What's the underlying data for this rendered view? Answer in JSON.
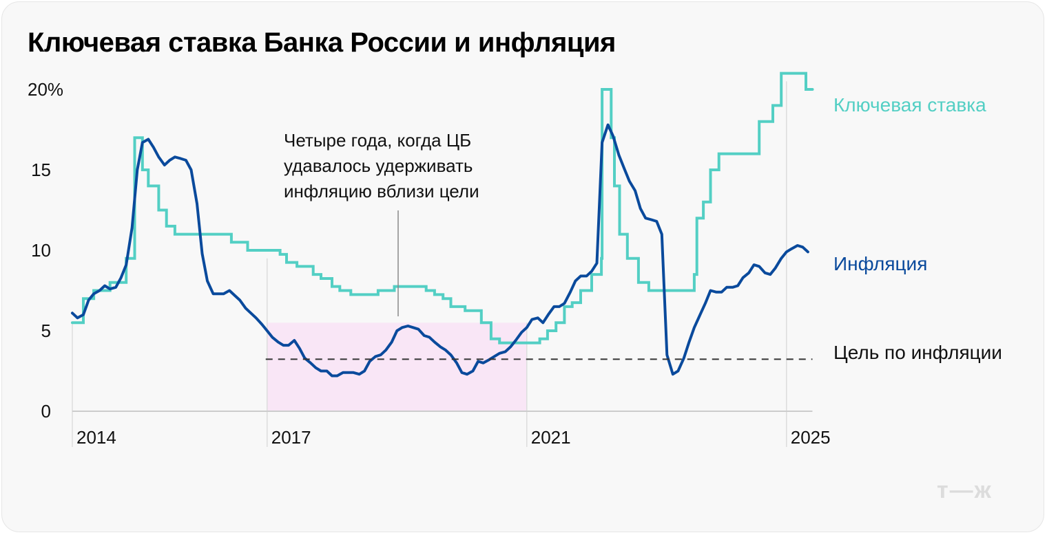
{
  "header": {
    "title": "Ключевая ставка Банка России и инфляция"
  },
  "logo": {
    "text": "т—ж"
  },
  "colors": {
    "background": "#f8f8f8",
    "key_rate": "#53cfc4",
    "inflation": "#0a4a9c",
    "target_line": "#333333",
    "highlight_band": "#f9e6f6",
    "grid": "#dddddd",
    "axis": "#cccccc"
  },
  "chart_data": {
    "type": "line",
    "title": "Ключевая ставка Банка России и инфляция",
    "xlabel": "",
    "ylabel": "",
    "ylim": [
      0,
      20
    ],
    "xlim": [
      2014.0,
      2025.4
    ],
    "y_ticks": [
      {
        "value": 0,
        "label": "0"
      },
      {
        "value": 5,
        "label": "5"
      },
      {
        "value": 10,
        "label": "10"
      },
      {
        "value": 15,
        "label": "15"
      },
      {
        "value": 20,
        "label": "20%"
      }
    ],
    "x_ticks": [
      {
        "value": 2014,
        "label": "2014"
      },
      {
        "value": 2017,
        "label": "2017"
      },
      {
        "value": 2021,
        "label": "2021"
      },
      {
        "value": 2025,
        "label": "2025"
      }
    ],
    "grid": "vertical lines at labeled years",
    "legend_position": "inline right",
    "series": [
      {
        "name": "Ключевая ставка",
        "style": "step",
        "points": [
          [
            2014.0,
            5.5
          ],
          [
            2014.17,
            7.0
          ],
          [
            2014.33,
            7.5
          ],
          [
            2014.58,
            8.0
          ],
          [
            2014.83,
            9.5
          ],
          [
            2014.96,
            17.0
          ],
          [
            2015.08,
            15.0
          ],
          [
            2015.17,
            14.0
          ],
          [
            2015.33,
            12.5
          ],
          [
            2015.45,
            11.5
          ],
          [
            2015.58,
            11.0
          ],
          [
            2016.45,
            10.5
          ],
          [
            2016.7,
            10.0
          ],
          [
            2017.2,
            9.75
          ],
          [
            2017.3,
            9.25
          ],
          [
            2017.46,
            9.0
          ],
          [
            2017.71,
            8.5
          ],
          [
            2017.83,
            8.25
          ],
          [
            2018.0,
            7.75
          ],
          [
            2018.12,
            7.5
          ],
          [
            2018.29,
            7.25
          ],
          [
            2018.71,
            7.5
          ],
          [
            2018.96,
            7.75
          ],
          [
            2019.45,
            7.5
          ],
          [
            2019.58,
            7.25
          ],
          [
            2019.71,
            7.0
          ],
          [
            2019.83,
            6.5
          ],
          [
            2020.05,
            6.25
          ],
          [
            2020.3,
            5.5
          ],
          [
            2020.45,
            4.5
          ],
          [
            2020.58,
            4.25
          ],
          [
            2021.2,
            4.5
          ],
          [
            2021.32,
            5.0
          ],
          [
            2021.45,
            5.5
          ],
          [
            2021.58,
            6.5
          ],
          [
            2021.7,
            6.75
          ],
          [
            2021.83,
            7.5
          ],
          [
            2022.0,
            8.5
          ],
          [
            2022.15,
            9.5
          ],
          [
            2022.16,
            20.0
          ],
          [
            2022.3,
            17.0
          ],
          [
            2022.35,
            14.0
          ],
          [
            2022.43,
            11.0
          ],
          [
            2022.55,
            9.5
          ],
          [
            2022.72,
            8.0
          ],
          [
            2022.88,
            7.5
          ],
          [
            2023.58,
            8.5
          ],
          [
            2023.62,
            12.0
          ],
          [
            2023.72,
            13.0
          ],
          [
            2023.83,
            15.0
          ],
          [
            2023.96,
            16.0
          ],
          [
            2024.58,
            18.0
          ],
          [
            2024.79,
            19.0
          ],
          [
            2024.92,
            21.0
          ],
          [
            2025.3,
            20.0
          ],
          [
            2025.4,
            20.0
          ]
        ]
      },
      {
        "name": "Инфляция",
        "style": "line",
        "points": [
          [
            2014.0,
            6.1
          ],
          [
            2014.08,
            5.8
          ],
          [
            2014.17,
            6.0
          ],
          [
            2014.25,
            6.9
          ],
          [
            2014.33,
            7.3
          ],
          [
            2014.42,
            7.5
          ],
          [
            2014.5,
            7.8
          ],
          [
            2014.58,
            7.6
          ],
          [
            2014.67,
            7.7
          ],
          [
            2014.75,
            8.3
          ],
          [
            2014.83,
            9.1
          ],
          [
            2014.92,
            11.4
          ],
          [
            2015.0,
            15.0
          ],
          [
            2015.08,
            16.7
          ],
          [
            2015.17,
            16.9
          ],
          [
            2015.25,
            16.4
          ],
          [
            2015.33,
            15.8
          ],
          [
            2015.42,
            15.3
          ],
          [
            2015.5,
            15.6
          ],
          [
            2015.58,
            15.8
          ],
          [
            2015.67,
            15.7
          ],
          [
            2015.75,
            15.6
          ],
          [
            2015.83,
            15.0
          ],
          [
            2015.92,
            12.9
          ],
          [
            2016.0,
            9.8
          ],
          [
            2016.08,
            8.1
          ],
          [
            2016.17,
            7.3
          ],
          [
            2016.25,
            7.3
          ],
          [
            2016.33,
            7.3
          ],
          [
            2016.42,
            7.5
          ],
          [
            2016.5,
            7.2
          ],
          [
            2016.58,
            6.9
          ],
          [
            2016.67,
            6.4
          ],
          [
            2016.75,
            6.1
          ],
          [
            2016.83,
            5.8
          ],
          [
            2016.92,
            5.4
          ],
          [
            2017.0,
            5.0
          ],
          [
            2017.08,
            4.6
          ],
          [
            2017.17,
            4.3
          ],
          [
            2017.25,
            4.1
          ],
          [
            2017.33,
            4.1
          ],
          [
            2017.42,
            4.4
          ],
          [
            2017.5,
            3.9
          ],
          [
            2017.58,
            3.3
          ],
          [
            2017.67,
            3.0
          ],
          [
            2017.75,
            2.7
          ],
          [
            2017.83,
            2.5
          ],
          [
            2017.92,
            2.5
          ],
          [
            2018.0,
            2.2
          ],
          [
            2018.08,
            2.2
          ],
          [
            2018.17,
            2.4
          ],
          [
            2018.25,
            2.4
          ],
          [
            2018.33,
            2.4
          ],
          [
            2018.42,
            2.3
          ],
          [
            2018.5,
            2.5
          ],
          [
            2018.58,
            3.1
          ],
          [
            2018.67,
            3.4
          ],
          [
            2018.75,
            3.5
          ],
          [
            2018.83,
            3.8
          ],
          [
            2018.92,
            4.3
          ],
          [
            2019.0,
            5.0
          ],
          [
            2019.08,
            5.2
          ],
          [
            2019.17,
            5.3
          ],
          [
            2019.25,
            5.2
          ],
          [
            2019.33,
            5.1
          ],
          [
            2019.42,
            4.7
          ],
          [
            2019.5,
            4.6
          ],
          [
            2019.58,
            4.3
          ],
          [
            2019.67,
            4.0
          ],
          [
            2019.75,
            3.8
          ],
          [
            2019.83,
            3.5
          ],
          [
            2019.92,
            3.0
          ],
          [
            2020.0,
            2.4
          ],
          [
            2020.08,
            2.3
          ],
          [
            2020.17,
            2.5
          ],
          [
            2020.25,
            3.1
          ],
          [
            2020.33,
            3.0
          ],
          [
            2020.42,
            3.2
          ],
          [
            2020.5,
            3.4
          ],
          [
            2020.58,
            3.6
          ],
          [
            2020.67,
            3.7
          ],
          [
            2020.75,
            4.0
          ],
          [
            2020.83,
            4.4
          ],
          [
            2020.92,
            4.9
          ],
          [
            2021.0,
            5.2
          ],
          [
            2021.08,
            5.7
          ],
          [
            2021.17,
            5.8
          ],
          [
            2021.25,
            5.5
          ],
          [
            2021.33,
            6.0
          ],
          [
            2021.42,
            6.5
          ],
          [
            2021.5,
            6.5
          ],
          [
            2021.58,
            6.7
          ],
          [
            2021.67,
            7.4
          ],
          [
            2021.75,
            8.1
          ],
          [
            2021.83,
            8.4
          ],
          [
            2021.92,
            8.4
          ],
          [
            2022.0,
            8.7
          ],
          [
            2022.08,
            9.2
          ],
          [
            2022.16,
            16.7
          ],
          [
            2022.25,
            17.8
          ],
          [
            2022.33,
            17.1
          ],
          [
            2022.42,
            15.9
          ],
          [
            2022.5,
            15.1
          ],
          [
            2022.58,
            14.3
          ],
          [
            2022.67,
            13.7
          ],
          [
            2022.75,
            12.6
          ],
          [
            2022.83,
            12.0
          ],
          [
            2022.92,
            11.9
          ],
          [
            2023.0,
            11.8
          ],
          [
            2023.08,
            11.0
          ],
          [
            2023.16,
            3.5
          ],
          [
            2023.25,
            2.3
          ],
          [
            2023.33,
            2.5
          ],
          [
            2023.42,
            3.3
          ],
          [
            2023.5,
            4.3
          ],
          [
            2023.58,
            5.2
          ],
          [
            2023.67,
            6.0
          ],
          [
            2023.75,
            6.7
          ],
          [
            2023.83,
            7.5
          ],
          [
            2023.92,
            7.4
          ],
          [
            2024.0,
            7.4
          ],
          [
            2024.08,
            7.7
          ],
          [
            2024.17,
            7.7
          ],
          [
            2024.25,
            7.8
          ],
          [
            2024.33,
            8.3
          ],
          [
            2024.42,
            8.6
          ],
          [
            2024.5,
            9.1
          ],
          [
            2024.58,
            9.0
          ],
          [
            2024.67,
            8.6
          ],
          [
            2024.75,
            8.5
          ],
          [
            2024.83,
            8.9
          ],
          [
            2024.92,
            9.5
          ],
          [
            2025.0,
            9.9
          ],
          [
            2025.08,
            10.1
          ],
          [
            2025.17,
            10.3
          ],
          [
            2025.25,
            10.2
          ],
          [
            2025.33,
            9.9
          ]
        ]
      },
      {
        "name": "Цель по инфляции",
        "style": "dashed",
        "points": [
          [
            2017.0,
            4.0
          ],
          [
            2025.4,
            4.0
          ]
        ]
      }
    ],
    "highlight": {
      "x_start": 2017.0,
      "x_end": 2021.0,
      "y_top": 5.5,
      "label": "Четыре года, когда ЦБ удавалось удерживать инфляцию вблизи цели"
    },
    "annotations": [
      "Четыре года, когда ЦБ",
      "удавалось удерживать",
      "инфляцию вблизи цели"
    ],
    "legend": [
      {
        "name": "Ключевая ставка",
        "color": "#53cfc4"
      },
      {
        "name": "Инфляция",
        "color": "#0a4a9c"
      },
      {
        "name": "Цель по инфляции",
        "color": "#111111"
      }
    ]
  },
  "labels": {
    "key_rate": "Ключевая ставка",
    "inflation": "Инфляция",
    "target": "Цель по инфляции",
    "annotation_lines": [
      "Четыре года, когда ЦБ",
      "удавалось удерживать",
      "инфляцию вблизи цели"
    ]
  }
}
